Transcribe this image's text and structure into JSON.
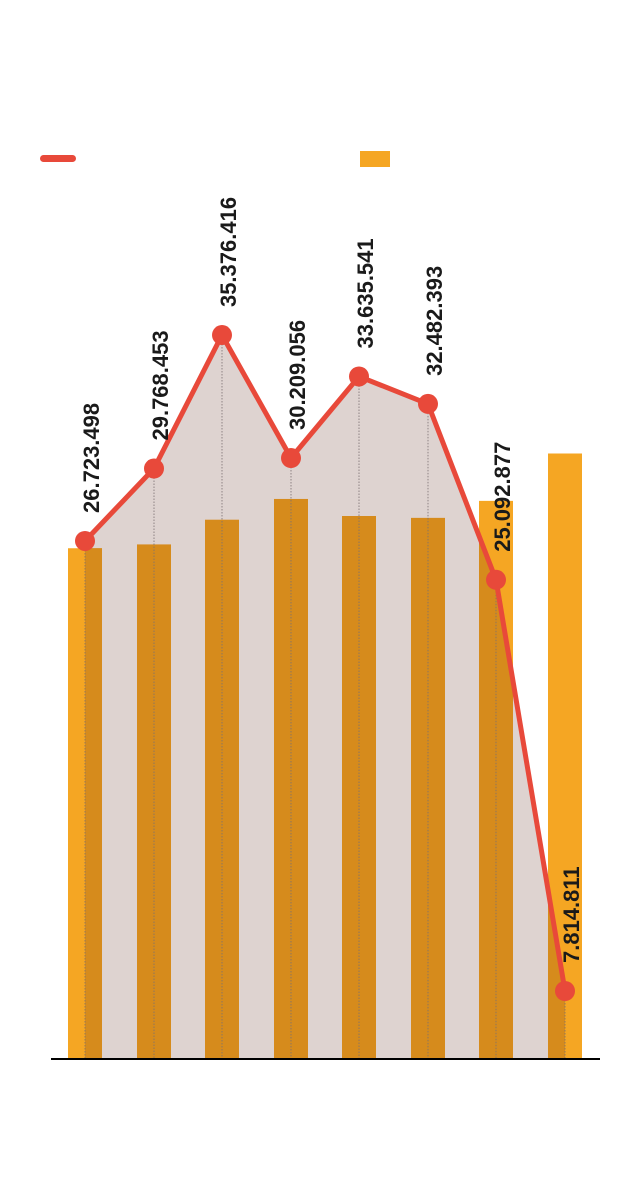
{
  "chart_data": {
    "type": "bar",
    "categories": [
      "",
      "",
      "",
      "",
      "",
      "",
      "",
      ""
    ],
    "series": [
      {
        "type": "bar",
        "color": "#f5a623",
        "values": [
          26.9,
          27.1,
          28.4,
          29.5,
          28.6,
          28.5,
          29.4,
          31.9
        ]
      },
      {
        "type": "area-line",
        "color": "#e8493a",
        "fill_color": "#ded3d0",
        "values": [
          26.723498,
          29.768453,
          35.376416,
          30.209056,
          33.635541,
          32.482393,
          25.092877,
          7.814811
        ],
        "labels": [
          "26.723.498",
          "29.768.453",
          "35.376.416",
          "30.209.056",
          "33.635.541",
          "32.482.393",
          "25.092.877",
          "7.814.811"
        ]
      }
    ],
    "legend": {
      "placement": "top",
      "entries": [
        {
          "type": "line",
          "color": "#e8493a",
          "label": ""
        },
        {
          "type": "bar",
          "color": "#f5a623",
          "label": ""
        }
      ]
    },
    "yaxis_bar": {
      "range": [
        0,
        40
      ]
    },
    "yaxis_line": {
      "range": [
        5,
        40
      ]
    },
    "grid": false,
    "bar_overlap_color": "#d68b1c"
  }
}
